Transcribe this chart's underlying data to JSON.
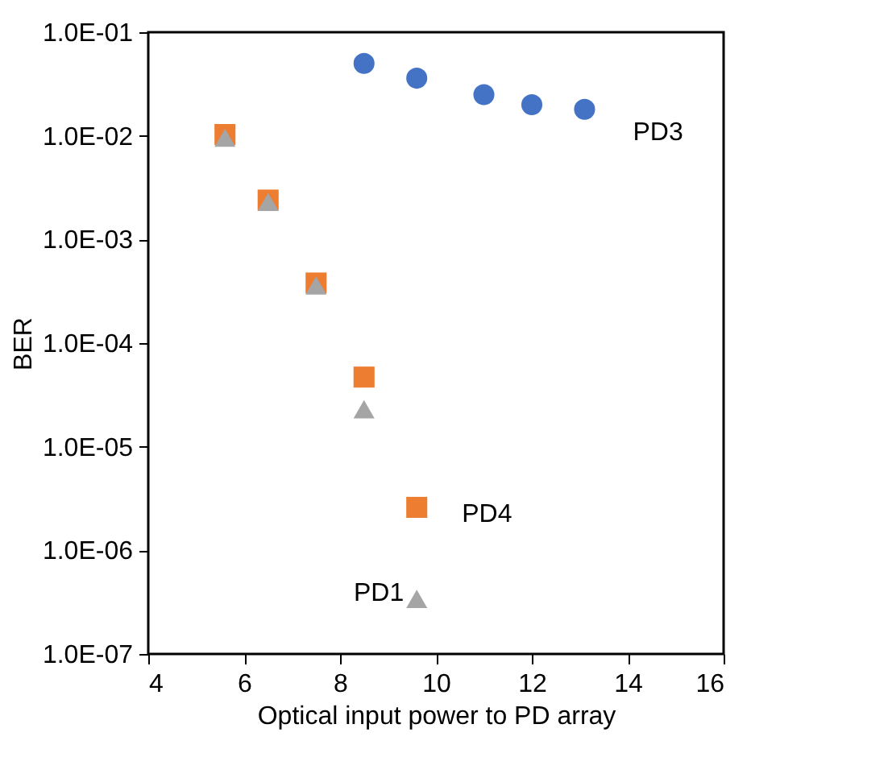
{
  "chart_data": {
    "type": "scatter",
    "xlabel": "Optical input power to PD array",
    "ylabel": "BER",
    "xlim": [
      4,
      16
    ],
    "xticks": [
      4,
      6,
      8,
      10,
      12,
      14,
      16
    ],
    "ylim": [
      1e-07,
      0.1
    ],
    "log": "y",
    "yticks": [
      {
        "value": 1e-07,
        "label": "1.0E-07"
      },
      {
        "value": 1e-06,
        "label": "1.0E-06"
      },
      {
        "value": 1e-05,
        "label": "1.0E-05"
      },
      {
        "value": 0.0001,
        "label": "1.0E-04"
      },
      {
        "value": 0.001,
        "label": "1.0E-03"
      },
      {
        "value": 0.01,
        "label": "1.0E-02"
      },
      {
        "value": 0.1,
        "label": "1.0E-01"
      }
    ],
    "grid": false,
    "legend": false,
    "series": [
      {
        "name": "PD3",
        "color": "#4472c4",
        "marker": "circle",
        "x": [
          8.5,
          9.6,
          11.0,
          12.0,
          13.1
        ],
        "values": [
          0.05,
          0.036,
          0.025,
          0.02,
          0.018
        ]
      },
      {
        "name": "PD4",
        "color": "#ed7d31",
        "marker": "square",
        "x": [
          5.6,
          6.5,
          7.5,
          8.5,
          9.6
        ],
        "values": [
          0.0103,
          0.0024,
          0.00038,
          4.7e-05,
          2.6e-06
        ]
      },
      {
        "name": "PD1",
        "color": "#a5a5a5",
        "marker": "triangle",
        "x": [
          5.6,
          6.5,
          7.5,
          8.5,
          9.6
        ],
        "values": [
          0.0096,
          0.0023,
          0.00036,
          2.3e-05,
          3.4e-07
        ]
      }
    ]
  }
}
